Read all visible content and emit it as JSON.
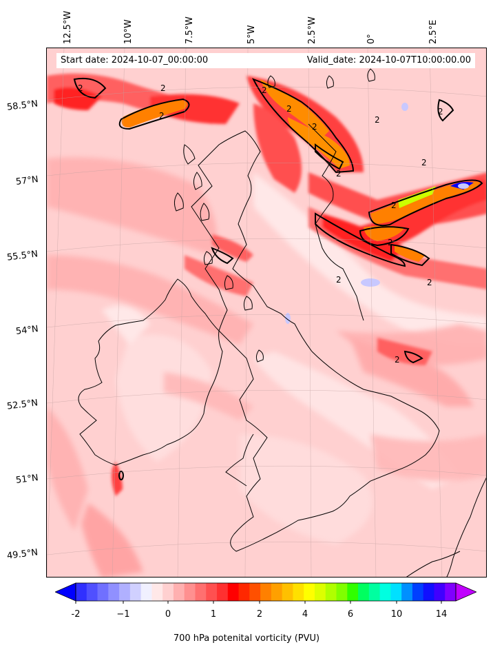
{
  "header": {
    "start_date": "Start date: 2024-10-07_00:00:00",
    "valid_date": "Valid_date: 2024-10-07T10:00:00.00"
  },
  "longitude_labels": [
    "12.5°W",
    "10°W",
    "7.5°W",
    "5°W",
    "2.5°W",
    "0°",
    "2.5°E"
  ],
  "latitude_labels": [
    "58.5°N",
    "57°N",
    "55.5°N",
    "54°N",
    "52.5°N",
    "51°N",
    "49.5°N"
  ],
  "colorbar": {
    "title": "700 hPa potenital vorticity (PVU)",
    "ticks": [
      "-2",
      "−1",
      "0",
      "1",
      "2",
      "4",
      "6",
      "10",
      "14"
    ],
    "colors": [
      "#0000ff",
      "#3030ff",
      "#5050ff",
      "#7070ff",
      "#9090ff",
      "#b0b0ff",
      "#d0d0ff",
      "#f0f0ff",
      "#ffe8e8",
      "#ffd0d0",
      "#ffb0b0",
      "#ff9090",
      "#ff7070",
      "#ff5050",
      "#ff3030",
      "#ff0000",
      "#ff2800",
      "#ff5000",
      "#ff8000",
      "#ffa000",
      "#ffc000",
      "#ffe000",
      "#ffff00",
      "#ddff00",
      "#b0ff00",
      "#80ff00",
      "#30ff00",
      "#00ff60",
      "#00ffa0",
      "#00ffe0",
      "#00e0ff",
      "#0090ff",
      "#0040ff",
      "#1010ff",
      "#4000ff",
      "#8000ff",
      "#c000ff"
    ]
  },
  "contour_label": "2"
}
